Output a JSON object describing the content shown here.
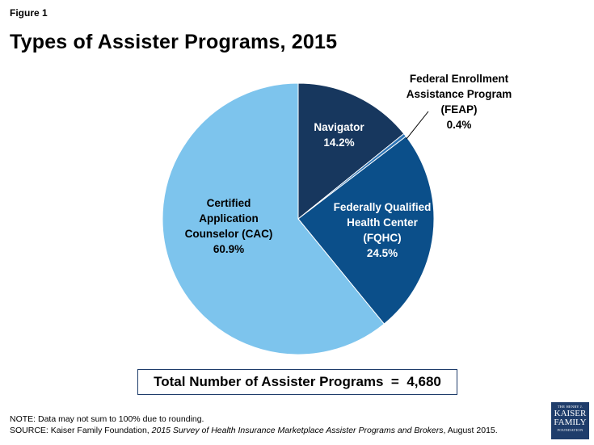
{
  "figure_label": "Figure 1",
  "title": "Types of Assister Programs, 2015",
  "chart_data": {
    "type": "pie",
    "title": "Types of Assister Programs, 2015",
    "slices": [
      {
        "name": "Navigator",
        "label_lines": [
          "Navigator"
        ],
        "value": 14.2,
        "display": "14.2%",
        "color": "#17375e"
      },
      {
        "name": "Federal Enrollment Assistance Program (FEAP)",
        "label_lines": [
          "Federal Enrollment",
          "Assistance Program",
          "(FEAP)"
        ],
        "value": 0.4,
        "display": "0.4%",
        "color": "#2e75b6"
      },
      {
        "name": "Federally Qualified Health Center (FQHC)",
        "label_lines": [
          "Federally Qualified",
          "Health Center",
          "(FQHC)"
        ],
        "value": 24.5,
        "display": "24.5%",
        "color": "#0b4f8a"
      },
      {
        "name": "Certified Application Counselor (CAC)",
        "label_lines": [
          "Certified",
          "Application",
          "Counselor (CAC)"
        ],
        "value": 60.9,
        "display": "60.9%",
        "color": "#7dc4ed"
      }
    ]
  },
  "total": {
    "label": "Total Number of Assister Programs",
    "equals": "=",
    "value": "4,680"
  },
  "note": "NOTE: Data may not sum to 100% due to rounding.",
  "source": {
    "prefix": "SOURCE: Kaiser Family Foundation, ",
    "italic": "2015 Survey of Health Insurance Marketplace Assister Programs and Brokers",
    "suffix": ", August 2015."
  },
  "logo": {
    "line1": "THE HENRY J.",
    "line2": "KAISER",
    "line3": "FAMILY",
    "line4": "FOUNDATION"
  }
}
